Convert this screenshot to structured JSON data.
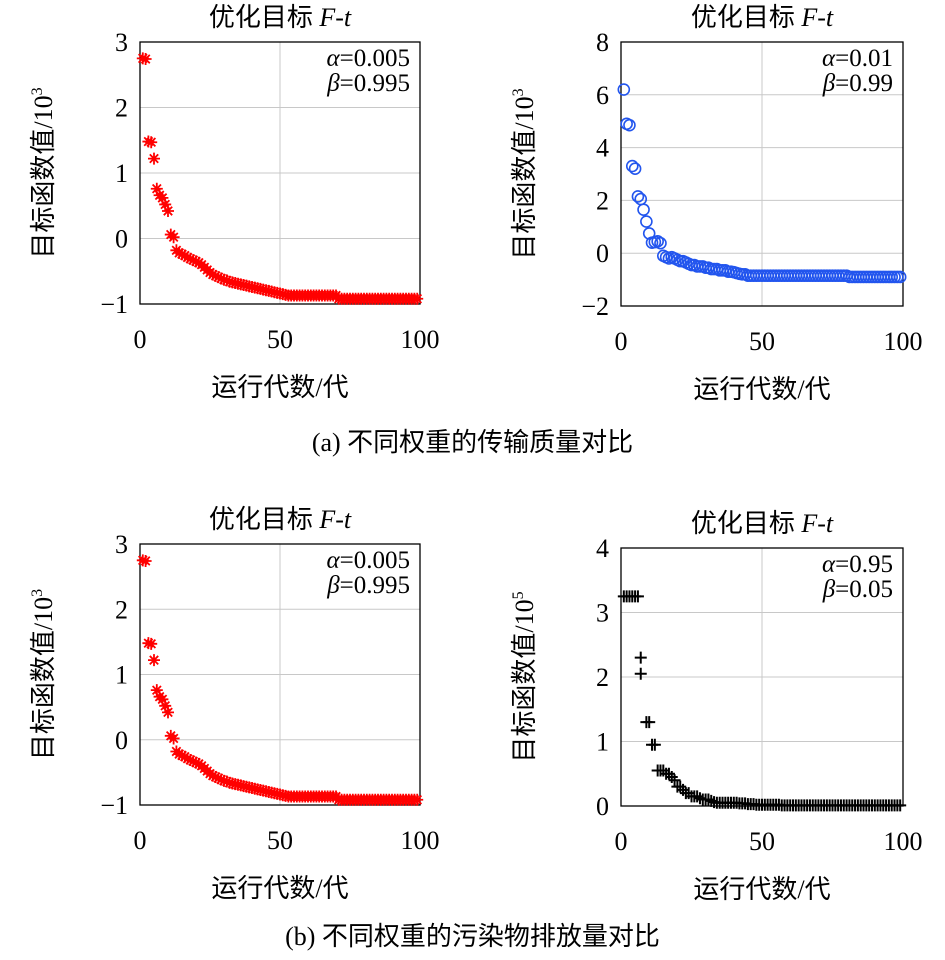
{
  "captions": {
    "a": "(a) 不同权重的传输质量对比",
    "b": "(b) 不同权重的污染物排放量对比"
  },
  "chart_data": [
    {
      "id": "a1",
      "type": "scatter",
      "marker": "asterisk",
      "color": "#ff0000",
      "title_main": "优化目标 ",
      "title_italic": "F-t",
      "xlabel": "运行代数/代",
      "ylabel_base": "目标函数值/10",
      "ylabel_exp": "3",
      "xlim": [
        0,
        100
      ],
      "ylim": [
        -1,
        3
      ],
      "xticks": [
        0,
        50,
        100
      ],
      "xtick_labels": [
        "0",
        "50",
        "100"
      ],
      "yticks": [
        -1,
        0,
        1,
        2,
        3
      ],
      "ytick_labels": [
        "−1",
        "0",
        "1",
        "2",
        "3"
      ],
      "grid": true,
      "legend": [
        {
          "sym": "α",
          "val": "=0.005"
        },
        {
          "sym": "β",
          "val": "=0.995"
        }
      ],
      "x": [
        1,
        2,
        3,
        4,
        5,
        6,
        7,
        8,
        9,
        10,
        11,
        12,
        13,
        14,
        15,
        16,
        17,
        18,
        19,
        20,
        21,
        22,
        23,
        24,
        25,
        26,
        27,
        28,
        29,
        30,
        31,
        32,
        33,
        34,
        35,
        36,
        37,
        38,
        39,
        40,
        41,
        42,
        43,
        44,
        45,
        46,
        47,
        48,
        49,
        50,
        51,
        52,
        53,
        54,
        55,
        56,
        57,
        58,
        59,
        60,
        61,
        62,
        63,
        64,
        65,
        66,
        67,
        68,
        69,
        70,
        71,
        72,
        73,
        74,
        75,
        76,
        77,
        78,
        79,
        80,
        81,
        82,
        83,
        84,
        85,
        86,
        87,
        88,
        89,
        90,
        91,
        92,
        93,
        94,
        95,
        96,
        97,
        98,
        99
      ],
      "y": [
        2.75,
        2.74,
        1.48,
        1.47,
        1.22,
        0.76,
        0.66,
        0.62,
        0.52,
        0.42,
        0.06,
        0.02,
        -0.18,
        -0.22,
        -0.24,
        -0.26,
        -0.29,
        -0.31,
        -0.33,
        -0.35,
        -0.37,
        -0.4,
        -0.44,
        -0.48,
        -0.52,
        -0.55,
        -0.57,
        -0.59,
        -0.61,
        -0.63,
        -0.64,
        -0.66,
        -0.67,
        -0.68,
        -0.69,
        -0.7,
        -0.71,
        -0.72,
        -0.73,
        -0.74,
        -0.75,
        -0.76,
        -0.77,
        -0.78,
        -0.79,
        -0.8,
        -0.81,
        -0.82,
        -0.83,
        -0.84,
        -0.85,
        -0.86,
        -0.87,
        -0.87,
        -0.87,
        -0.87,
        -0.87,
        -0.87,
        -0.87,
        -0.87,
        -0.87,
        -0.87,
        -0.87,
        -0.87,
        -0.87,
        -0.87,
        -0.87,
        -0.87,
        -0.87,
        -0.87,
        -0.92,
        -0.92,
        -0.92,
        -0.92,
        -0.92,
        -0.92,
        -0.92,
        -0.92,
        -0.92,
        -0.92,
        -0.92,
        -0.92,
        -0.92,
        -0.92,
        -0.92,
        -0.92,
        -0.92,
        -0.92,
        -0.92,
        -0.92,
        -0.92,
        -0.92,
        -0.92,
        -0.92,
        -0.92,
        -0.92,
        -0.92,
        -0.92,
        -0.92
      ]
    },
    {
      "id": "a2",
      "type": "scatter",
      "marker": "circle",
      "color": "#2255ee",
      "title_main": "优化目标 ",
      "title_italic": "F-t",
      "xlabel": "运行代数/代",
      "ylabel_base": "目标函数值/10",
      "ylabel_exp": "3",
      "xlim": [
        0,
        100
      ],
      "ylim": [
        -2,
        8
      ],
      "xticks": [
        0,
        50,
        100
      ],
      "xtick_labels": [
        "0",
        "50",
        "100"
      ],
      "yticks": [
        -2,
        0,
        2,
        4,
        6,
        8
      ],
      "ytick_labels": [
        "−2",
        "0",
        "2",
        "4",
        "6",
        "8"
      ],
      "grid": true,
      "legend": [
        {
          "sym": "α",
          "val": "=0.01"
        },
        {
          "sym": "β",
          "val": "=0.99"
        }
      ],
      "x": [
        1,
        2,
        3,
        4,
        5,
        6,
        7,
        8,
        9,
        10,
        11,
        12,
        13,
        14,
        15,
        16,
        17,
        18,
        19,
        20,
        21,
        22,
        23,
        24,
        25,
        26,
        27,
        28,
        29,
        30,
        31,
        32,
        33,
        34,
        35,
        36,
        37,
        38,
        39,
        40,
        41,
        42,
        43,
        44,
        45,
        46,
        47,
        48,
        49,
        50,
        51,
        52,
        53,
        54,
        55,
        56,
        57,
        58,
        59,
        60,
        61,
        62,
        63,
        64,
        65,
        66,
        67,
        68,
        69,
        70,
        71,
        72,
        73,
        74,
        75,
        76,
        77,
        78,
        79,
        80,
        81,
        82,
        83,
        84,
        85,
        86,
        87,
        88,
        89,
        90,
        91,
        92,
        93,
        94,
        95,
        96,
        97,
        98,
        99
      ],
      "y": [
        6.2,
        4.9,
        4.85,
        3.3,
        3.2,
        2.15,
        2.05,
        1.65,
        1.2,
        0.75,
        0.4,
        0.42,
        0.45,
        0.38,
        -0.1,
        -0.15,
        -0.2,
        -0.15,
        -0.2,
        -0.25,
        -0.3,
        -0.3,
        -0.35,
        -0.4,
        -0.45,
        -0.45,
        -0.5,
        -0.5,
        -0.5,
        -0.55,
        -0.55,
        -0.6,
        -0.6,
        -0.6,
        -0.65,
        -0.65,
        -0.65,
        -0.7,
        -0.7,
        -0.72,
        -0.75,
        -0.78,
        -0.8,
        -0.8,
        -0.85,
        -0.85,
        -0.85,
        -0.85,
        -0.85,
        -0.85,
        -0.85,
        -0.85,
        -0.85,
        -0.85,
        -0.85,
        -0.85,
        -0.85,
        -0.85,
        -0.85,
        -0.85,
        -0.85,
        -0.85,
        -0.85,
        -0.85,
        -0.85,
        -0.85,
        -0.85,
        -0.85,
        -0.85,
        -0.85,
        -0.85,
        -0.85,
        -0.85,
        -0.85,
        -0.85,
        -0.85,
        -0.85,
        -0.85,
        -0.85,
        -0.85,
        -0.9,
        -0.9,
        -0.9,
        -0.9,
        -0.9,
        -0.9,
        -0.9,
        -0.9,
        -0.9,
        -0.9,
        -0.9,
        -0.9,
        -0.9,
        -0.9,
        -0.9,
        -0.9,
        -0.9,
        -0.9,
        -0.9
      ]
    },
    {
      "id": "b1",
      "type": "scatter",
      "marker": "asterisk",
      "color": "#ff0000",
      "title_main": "优化目标 ",
      "title_italic": "F-t",
      "xlabel": "运行代数/代",
      "ylabel_base": "目标函数值/10",
      "ylabel_exp": "3",
      "xlim": [
        0,
        100
      ],
      "ylim": [
        -1,
        3
      ],
      "xticks": [
        0,
        50,
        100
      ],
      "xtick_labels": [
        "0",
        "50",
        "100"
      ],
      "yticks": [
        -1,
        0,
        1,
        2,
        3
      ],
      "ytick_labels": [
        "−1",
        "0",
        "1",
        "2",
        "3"
      ],
      "grid": true,
      "legend": [
        {
          "sym": "α",
          "val": "=0.005"
        },
        {
          "sym": "β",
          "val": "=0.995"
        }
      ],
      "x": [
        1,
        2,
        3,
        4,
        5,
        6,
        7,
        8,
        9,
        10,
        11,
        12,
        13,
        14,
        15,
        16,
        17,
        18,
        19,
        20,
        21,
        22,
        23,
        24,
        25,
        26,
        27,
        28,
        29,
        30,
        31,
        32,
        33,
        34,
        35,
        36,
        37,
        38,
        39,
        40,
        41,
        42,
        43,
        44,
        45,
        46,
        47,
        48,
        49,
        50,
        51,
        52,
        53,
        54,
        55,
        56,
        57,
        58,
        59,
        60,
        61,
        62,
        63,
        64,
        65,
        66,
        67,
        68,
        69,
        70,
        71,
        72,
        73,
        74,
        75,
        76,
        77,
        78,
        79,
        80,
        81,
        82,
        83,
        84,
        85,
        86,
        87,
        88,
        89,
        90,
        91,
        92,
        93,
        94,
        95,
        96,
        97,
        98,
        99
      ],
      "y": [
        2.75,
        2.74,
        1.48,
        1.47,
        1.22,
        0.76,
        0.66,
        0.62,
        0.52,
        0.42,
        0.06,
        0.02,
        -0.18,
        -0.22,
        -0.24,
        -0.26,
        -0.29,
        -0.31,
        -0.33,
        -0.35,
        -0.37,
        -0.4,
        -0.44,
        -0.48,
        -0.52,
        -0.55,
        -0.57,
        -0.59,
        -0.61,
        -0.63,
        -0.64,
        -0.66,
        -0.67,
        -0.68,
        -0.69,
        -0.7,
        -0.71,
        -0.72,
        -0.73,
        -0.74,
        -0.75,
        -0.76,
        -0.77,
        -0.78,
        -0.79,
        -0.8,
        -0.81,
        -0.82,
        -0.83,
        -0.84,
        -0.85,
        -0.86,
        -0.87,
        -0.87,
        -0.87,
        -0.87,
        -0.87,
        -0.87,
        -0.87,
        -0.87,
        -0.87,
        -0.87,
        -0.87,
        -0.87,
        -0.87,
        -0.87,
        -0.87,
        -0.87,
        -0.87,
        -0.87,
        -0.92,
        -0.92,
        -0.92,
        -0.92,
        -0.92,
        -0.92,
        -0.92,
        -0.92,
        -0.92,
        -0.92,
        -0.92,
        -0.92,
        -0.92,
        -0.92,
        -0.92,
        -0.92,
        -0.92,
        -0.92,
        -0.92,
        -0.92,
        -0.92,
        -0.92,
        -0.92,
        -0.92,
        -0.92,
        -0.92,
        -0.92,
        -0.92,
        -0.92
      ]
    },
    {
      "id": "b2",
      "type": "scatter",
      "marker": "plus",
      "color": "#000000",
      "title_main": "优化目标 ",
      "title_italic": "F-t",
      "xlabel": "运行代数/代",
      "ylabel_base": "目标函数值/10",
      "ylabel_exp": "5",
      "xlim": [
        0,
        100
      ],
      "ylim": [
        0,
        4
      ],
      "xticks": [
        0,
        50,
        100
      ],
      "xtick_labels": [
        "0",
        "50",
        "100"
      ],
      "yticks": [
        0,
        1,
        2,
        3,
        4
      ],
      "ytick_labels": [
        "0",
        "1",
        "2",
        "3",
        "4"
      ],
      "grid": true,
      "legend": [
        {
          "sym": "α",
          "val": "=0.95"
        },
        {
          "sym": "β",
          "val": "=0.05"
        }
      ],
      "x": [
        1,
        2,
        3,
        4,
        5,
        6,
        7,
        7,
        9,
        10,
        11,
        12,
        13,
        14,
        15,
        16,
        17,
        18,
        19,
        20,
        21,
        22,
        23,
        24,
        25,
        26,
        27,
        28,
        29,
        30,
        31,
        32,
        33,
        34,
        35,
        36,
        37,
        38,
        39,
        40,
        41,
        42,
        43,
        44,
        45,
        46,
        47,
        48,
        49,
        50,
        51,
        52,
        53,
        54,
        55,
        56,
        57,
        58,
        59,
        60,
        61,
        62,
        63,
        64,
        65,
        66,
        67,
        68,
        69,
        70,
        71,
        72,
        73,
        74,
        75,
        76,
        77,
        78,
        79,
        80,
        81,
        82,
        83,
        84,
        85,
        86,
        87,
        88,
        89,
        90,
        91,
        92,
        93,
        94,
        95,
        96,
        97,
        98,
        99
      ],
      "y": [
        3.25,
        3.25,
        3.25,
        3.25,
        3.25,
        3.25,
        2.3,
        2.05,
        1.3,
        1.3,
        0.95,
        0.95,
        0.55,
        0.55,
        0.55,
        0.5,
        0.5,
        0.45,
        0.4,
        0.3,
        0.3,
        0.25,
        0.2,
        0.2,
        0.15,
        0.15,
        0.15,
        0.12,
        0.1,
        0.1,
        0.1,
        0.08,
        0.06,
        0.05,
        0.05,
        0.05,
        0.05,
        0.05,
        0.05,
        0.05,
        0.05,
        0.04,
        0.04,
        0.04,
        0.03,
        0.03,
        0.03,
        0.02,
        0.02,
        0.02,
        0.02,
        0.02,
        0.02,
        0.02,
        0.02,
        0.02,
        0.01,
        0.01,
        0.01,
        0.01,
        0.01,
        0.01,
        0.01,
        0.01,
        0.01,
        0.01,
        0.01,
        0.01,
        0.01,
        0.01,
        0.01,
        0.01,
        0.01,
        0.01,
        0.01,
        0.01,
        0.01,
        0.01,
        0.01,
        0.01,
        0.01,
        0.01,
        0.01,
        0.01,
        0.01,
        0.01,
        0.01,
        0.01,
        0.01,
        0.01,
        0.01,
        0.01,
        0.01,
        0.01,
        0.01,
        0.01,
        0.01,
        0.01,
        0.01
      ]
    }
  ]
}
